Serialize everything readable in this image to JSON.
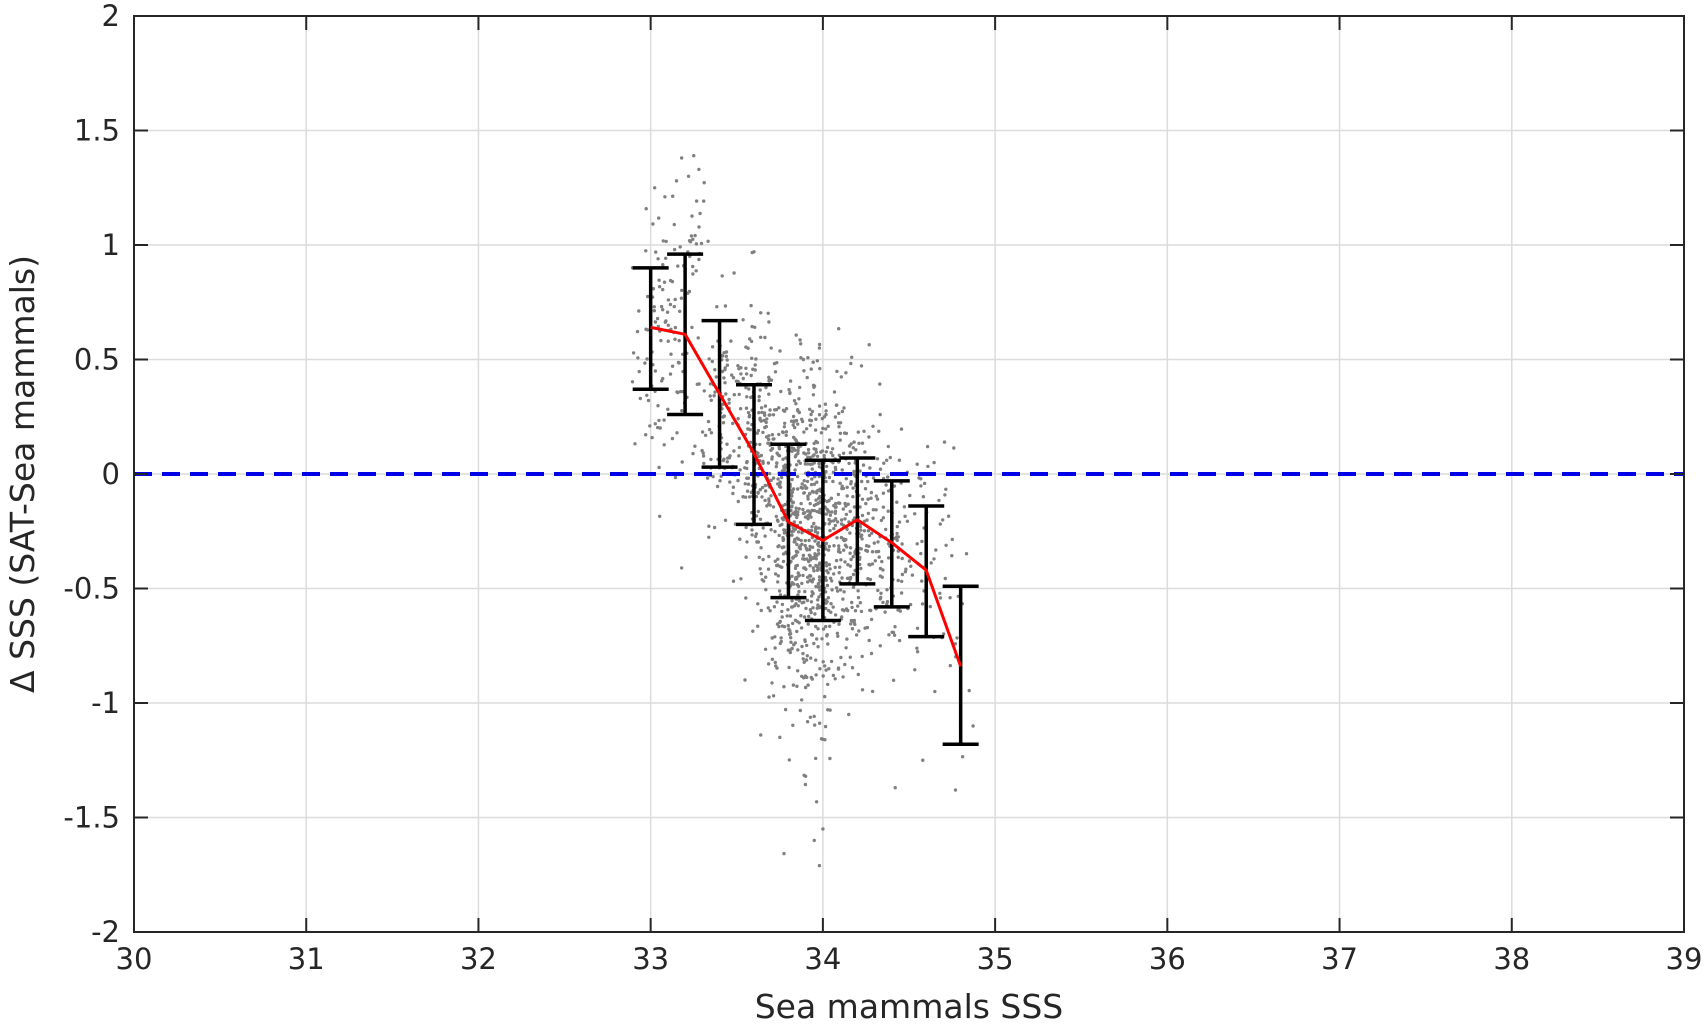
{
  "chart_data": {
    "type": "scatter",
    "title": "",
    "xlabel": "Sea mammals SSS",
    "ylabel": "Δ SSS (SAT-Sea mammals)",
    "xlim": [
      30,
      39
    ],
    "ylim": [
      -2,
      2
    ],
    "xticks": [
      30,
      31,
      32,
      33,
      34,
      35,
      36,
      37,
      38,
      39
    ],
    "yticks": [
      -2,
      -1.5,
      -1,
      -0.5,
      0,
      0.5,
      1,
      1.5,
      2
    ],
    "xtick_labels": [
      "30",
      "31",
      "32",
      "33",
      "34",
      "35",
      "36",
      "37",
      "38",
      "39"
    ],
    "ytick_labels": [
      "-2",
      "-1.5",
      "-1",
      "-0.5",
      "0",
      "0.5",
      "1",
      "1.5",
      "2"
    ],
    "grid": true,
    "legend": "none",
    "reference_line": {
      "y": 0,
      "style": "dashed",
      "color": "#0000e6"
    },
    "colors": {
      "scatter": "#808080",
      "mean_line": "#ff0000",
      "error_bars": "#000000",
      "grid": "#dcdcdc",
      "axes": "#262626"
    },
    "scatter_clusters": [
      {
        "x": 33.08,
        "y": 0.55,
        "sx": 0.09,
        "sy": 0.28,
        "n": 110
      },
      {
        "x": 33.22,
        "y": 1.05,
        "sx": 0.06,
        "sy": 0.15,
        "n": 25
      },
      {
        "x": 33.42,
        "y": 0.3,
        "sx": 0.08,
        "sy": 0.25,
        "n": 120
      },
      {
        "x": 33.62,
        "y": 0.05,
        "sx": 0.07,
        "sy": 0.28,
        "n": 180
      },
      {
        "x": 33.82,
        "y": -0.25,
        "sx": 0.08,
        "sy": 0.35,
        "n": 420
      },
      {
        "x": 34.0,
        "y": -0.3,
        "sx": 0.08,
        "sy": 0.36,
        "n": 380
      },
      {
        "x": 34.2,
        "y": -0.25,
        "sx": 0.08,
        "sy": 0.28,
        "n": 200
      },
      {
        "x": 34.4,
        "y": -0.32,
        "sx": 0.08,
        "sy": 0.25,
        "n": 90
      },
      {
        "x": 34.6,
        "y": -0.45,
        "sx": 0.08,
        "sy": 0.28,
        "n": 40
      },
      {
        "x": 34.8,
        "y": -0.85,
        "sx": 0.06,
        "sy": 0.3,
        "n": 12
      }
    ],
    "scatter_outliers": [
      [
        33.18,
        1.38
      ],
      [
        33.25,
        1.39
      ],
      [
        33.22,
        1.3
      ],
      [
        33.28,
        1.33
      ],
      [
        33.15,
        1.28
      ],
      [
        33.75,
        -1.15
      ],
      [
        33.9,
        -1.32
      ],
      [
        33.95,
        -1.6
      ],
      [
        33.98,
        -1.71
      ],
      [
        34.0,
        -1.55
      ],
      [
        34.15,
        -1.05
      ],
      [
        34.42,
        -1.37
      ],
      [
        34.58,
        -1.25
      ],
      [
        34.77,
        -1.38
      ],
      [
        33.18,
        -0.41
      ],
      [
        33.6,
        0.97
      ],
      [
        34.65,
        -0.95
      ],
      [
        33.7,
        0.55
      ],
      [
        33.98,
        0.55
      ],
      [
        34.38,
        0.12
      ]
    ],
    "binned": {
      "x": [
        33.0,
        33.2,
        33.4,
        33.6,
        33.8,
        34.0,
        34.2,
        34.4,
        34.6,
        34.8
      ],
      "mean": [
        0.64,
        0.61,
        0.35,
        0.09,
        -0.21,
        -0.29,
        -0.2,
        -0.3,
        -0.42,
        -0.84
      ],
      "upper": [
        0.9,
        0.96,
        0.67,
        0.39,
        0.13,
        0.06,
        0.07,
        -0.03,
        -0.14,
        -0.49
      ],
      "lower": [
        0.37,
        0.26,
        0.03,
        -0.22,
        -0.54,
        -0.64,
        -0.48,
        -0.58,
        -0.71,
        -1.18
      ]
    }
  }
}
